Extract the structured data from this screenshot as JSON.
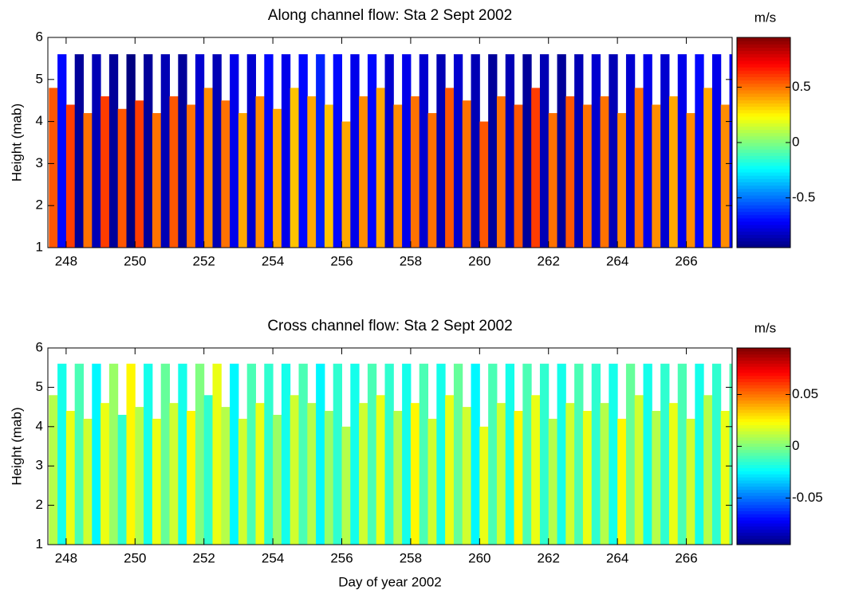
{
  "chart_data": [
    {
      "type": "heatmap",
      "title": "Along channel flow: Sta 2 Sept 2002",
      "ylabel": "Height (mab)",
      "x": [
        247.5,
        247.75,
        248,
        248.25,
        248.5,
        248.75,
        249,
        249.25,
        249.5,
        249.75,
        250,
        250.25,
        250.5,
        250.75,
        251,
        251.25,
        251.5,
        251.75,
        252,
        252.25,
        252.5,
        252.75,
        253,
        253.25,
        253.5,
        253.75,
        254,
        254.25,
        254.5,
        254.75,
        255,
        255.25,
        255.5,
        255.75,
        256,
        256.25,
        256.5,
        256.75,
        257,
        257.25,
        257.5,
        257.75,
        258,
        258.25,
        258.5,
        258.75,
        259,
        259.25,
        259.5,
        259.75,
        260,
        260.25,
        260.5,
        260.75,
        261,
        261.25,
        261.5,
        261.75,
        262,
        262.25,
        262.5,
        262.75,
        263,
        263.25,
        263.5,
        263.75,
        264,
        264.25,
        264.5,
        264.75,
        265,
        265.25,
        265.5,
        265.75,
        266,
        266.25,
        266.5,
        266.75,
        267,
        267.25
      ],
      "values": [
        0.55,
        -0.7,
        0.6,
        -0.9,
        0.5,
        -0.85,
        0.6,
        -0.9,
        0.55,
        -0.95,
        0.6,
        -0.9,
        0.5,
        -0.85,
        0.55,
        -0.9,
        0.5,
        -0.8,
        0.45,
        -0.85,
        0.5,
        -0.75,
        0.4,
        -0.8,
        0.45,
        -0.7,
        0.4,
        -0.75,
        0.35,
        -0.7,
        0.4,
        -0.65,
        0.35,
        -0.7,
        0.4,
        -0.75,
        0.45,
        -0.7,
        0.4,
        -0.8,
        0.45,
        -0.75,
        0.5,
        -0.8,
        0.5,
        -0.85,
        0.55,
        -0.8,
        0.5,
        -0.85,
        0.55,
        -0.9,
        0.5,
        -0.85,
        0.55,
        -0.9,
        0.6,
        -0.85,
        0.5,
        -0.9,
        0.55,
        -0.85,
        0.5,
        -0.8,
        0.5,
        -0.85,
        0.45,
        -0.8,
        0.5,
        -0.75,
        0.45,
        -0.8,
        0.4,
        -0.75,
        0.45,
        -0.7,
        0.4,
        -0.75,
        0.45,
        -0.7
      ],
      "tops": [
        4.8,
        5.6,
        4.4,
        5.6,
        4.2,
        5.6,
        4.6,
        5.6,
        4.3,
        5.6,
        4.5,
        5.6,
        4.2,
        5.6,
        4.6,
        5.6,
        4.4,
        5.6,
        4.8,
        5.6,
        4.5,
        5.6,
        4.2,
        5.6,
        4.6,
        5.6,
        4.3,
        5.6,
        4.8,
        5.6,
        4.6,
        5.6,
        4.4,
        5.6,
        4.0,
        5.6,
        4.6,
        5.6,
        4.8,
        5.6,
        4.4,
        5.6,
        4.6,
        5.6,
        4.2,
        5.6,
        4.8,
        5.6,
        4.5,
        5.6,
        4.0,
        5.6,
        4.6,
        5.6,
        4.4,
        5.6,
        4.8,
        5.6,
        4.2,
        5.6,
        4.6,
        5.6,
        4.4,
        5.6,
        4.6,
        5.6,
        4.2,
        5.6,
        4.8,
        5.6,
        4.4,
        5.6,
        4.6,
        5.6,
        4.2,
        5.6,
        4.8,
        5.6,
        4.4,
        5.6
      ],
      "xlim": [
        247.47,
        267.33
      ],
      "ylim": [
        1,
        6
      ],
      "xticks": [
        248,
        250,
        252,
        254,
        256,
        258,
        260,
        262,
        264,
        266
      ],
      "yticks": [
        1,
        2,
        3,
        4,
        5,
        6
      ],
      "colorbar": {
        "label": "m/s",
        "clim": [
          -0.95,
          0.95
        ],
        "ticks": [
          -0.5,
          0,
          0.5
        ]
      }
    },
    {
      "type": "heatmap",
      "title": "Cross channel flow: Sta 2 Sept 2002",
      "ylabel": "Height (mab)",
      "xlabel": "Day of year 2002",
      "x": [
        247.5,
        247.75,
        248,
        248.25,
        248.5,
        248.75,
        249,
        249.25,
        249.5,
        249.75,
        250,
        250.25,
        250.5,
        250.75,
        251,
        251.25,
        251.5,
        251.75,
        252,
        252.25,
        252.5,
        252.75,
        253,
        253.25,
        253.5,
        253.75,
        254,
        254.25,
        254.5,
        254.75,
        255,
        255.25,
        255.5,
        255.75,
        256,
        256.25,
        256.5,
        256.75,
        257,
        257.25,
        257.5,
        257.75,
        258,
        258.25,
        258.5,
        258.75,
        259,
        259.25,
        259.5,
        259.75,
        260,
        260.25,
        260.5,
        260.75,
        261,
        261.25,
        261.5,
        261.75,
        262,
        262.25,
        262.5,
        262.75,
        263,
        263.25,
        263.5,
        263.75,
        264,
        264.25,
        264.5,
        264.75,
        265,
        265.25,
        265.5,
        265.75,
        266,
        266.25,
        266.5,
        266.75,
        267,
        267.25
      ],
      "values": [
        0.01,
        -0.02,
        0.02,
        -0.01,
        0.015,
        -0.025,
        0.02,
        0.005,
        -0.015,
        0.025,
        0.01,
        -0.02,
        0.02,
        -0.005,
        0.015,
        -0.02,
        0.025,
        0.0,
        -0.015,
        0.02,
        0.01,
        -0.025,
        0.015,
        -0.01,
        0.02,
        -0.015,
        0.005,
        -0.02,
        0.015,
        -0.01,
        0.01,
        -0.025,
        0.005,
        -0.015,
        0.01,
        -0.02,
        0.015,
        -0.01,
        0.02,
        -0.015,
        0.01,
        -0.02,
        0.025,
        -0.01,
        0.015,
        -0.02,
        0.02,
        -0.005,
        0.015,
        -0.025,
        0.02,
        -0.01,
        0.015,
        -0.02,
        0.025,
        -0.01,
        0.02,
        -0.015,
        0.01,
        -0.02,
        0.015,
        -0.01,
        0.02,
        -0.015,
        0.01,
        -0.02,
        0.025,
        -0.005,
        0.015,
        -0.02,
        0.01,
        -0.015,
        0.02,
        -0.01,
        0.015,
        -0.02,
        0.01,
        -0.015,
        0.02,
        -0.01
      ],
      "tops": [
        4.8,
        5.6,
        4.4,
        5.6,
        4.2,
        5.6,
        4.6,
        5.6,
        4.3,
        5.6,
        4.5,
        5.6,
        4.2,
        5.6,
        4.6,
        5.6,
        4.4,
        5.6,
        4.8,
        5.6,
        4.5,
        5.6,
        4.2,
        5.6,
        4.6,
        5.6,
        4.3,
        5.6,
        4.8,
        5.6,
        4.6,
        5.6,
        4.4,
        5.6,
        4.0,
        5.6,
        4.6,
        5.6,
        4.8,
        5.6,
        4.4,
        5.6,
        4.6,
        5.6,
        4.2,
        5.6,
        4.8,
        5.6,
        4.5,
        5.6,
        4.0,
        5.6,
        4.6,
        5.6,
        4.4,
        5.6,
        4.8,
        5.6,
        4.2,
        5.6,
        4.6,
        5.6,
        4.4,
        5.6,
        4.6,
        5.6,
        4.2,
        5.6,
        4.8,
        5.6,
        4.4,
        5.6,
        4.6,
        5.6,
        4.2,
        5.6,
        4.8,
        5.6,
        4.4,
        5.6
      ],
      "xlim": [
        247.47,
        267.33
      ],
      "ylim": [
        1,
        6
      ],
      "xticks": [
        248,
        250,
        252,
        254,
        256,
        258,
        260,
        262,
        264,
        266
      ],
      "yticks": [
        1,
        2,
        3,
        4,
        5,
        6
      ],
      "colorbar": {
        "label": "m/s",
        "clim": [
          -0.095,
          0.095
        ],
        "ticks": [
          -0.05,
          0,
          0.05
        ]
      }
    }
  ]
}
